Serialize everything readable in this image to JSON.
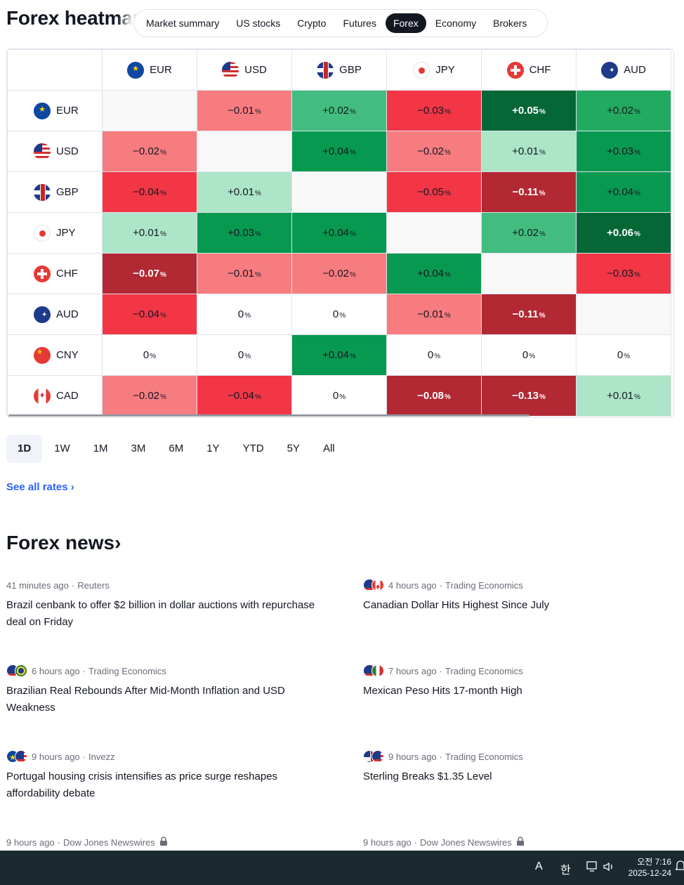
{
  "header": {
    "title": "Forex heatmap",
    "tabs": [
      "Market summary",
      "US stocks",
      "Crypto",
      "Futures",
      "Forex",
      "Economy",
      "Brokers"
    ],
    "active_tab": "Forex"
  },
  "heatmap": {
    "columns": [
      "EUR",
      "USD",
      "GBP",
      "JPY",
      "CHF",
      "AUD"
    ],
    "rows": [
      {
        "currency": "EUR",
        "cells": [
          "",
          "−0.01",
          "+0.02",
          "−0.03",
          "+0.05",
          "+0.02"
        ],
        "colors": [
          "#f8f8f8",
          "#f77c80",
          "#42bd7f",
          "#f23645",
          "#056636",
          "#22ab60"
        ]
      },
      {
        "currency": "USD",
        "cells": [
          "−0.02",
          "",
          "+0.04",
          "−0.02",
          "+0.01",
          "+0.03"
        ],
        "colors": [
          "#f77c80",
          "#f8f8f8",
          "#089950",
          "#f77c80",
          "#ace5c7",
          "#089950"
        ]
      },
      {
        "currency": "GBP",
        "cells": [
          "−0.04",
          "+0.01",
          "",
          "−0.05",
          "−0.11",
          "+0.04"
        ],
        "colors": [
          "#f23645",
          "#ace5c7",
          "#f8f8f8",
          "#f23645",
          "#b22833",
          "#089950"
        ]
      },
      {
        "currency": "JPY",
        "cells": [
          "+0.01",
          "+0.03",
          "+0.04",
          "",
          "+0.02",
          "+0.06"
        ],
        "colors": [
          "#ace5c7",
          "#089950",
          "#089950",
          "#f8f8f8",
          "#42bd7f",
          "#056636"
        ]
      },
      {
        "currency": "CHF",
        "cells": [
          "−0.07",
          "−0.01",
          "−0.02",
          "+0.04",
          "",
          "−0.03"
        ],
        "colors": [
          "#b22833",
          "#f77c80",
          "#f77c80",
          "#089950",
          "#f8f8f8",
          "#f23645"
        ]
      },
      {
        "currency": "AUD",
        "cells": [
          "−0.04",
          "0",
          "0",
          "−0.01",
          "−0.11",
          ""
        ],
        "colors": [
          "#f23645",
          "#ffffff",
          "#ffffff",
          "#f77c80",
          "#b22833",
          "#f8f8f8"
        ]
      },
      {
        "currency": "CNY",
        "cells": [
          "0",
          "0",
          "+0.04",
          "0",
          "0",
          "0"
        ],
        "colors": [
          "#ffffff",
          "#ffffff",
          "#089950",
          "#ffffff",
          "#ffffff",
          "#ffffff"
        ]
      },
      {
        "currency": "CAD",
        "cells": [
          "−0.02",
          "−0.04",
          "0",
          "−0.08",
          "−0.13",
          "+0.01"
        ],
        "colors": [
          "#f77c80",
          "#f23645",
          "#ffffff",
          "#b22833",
          "#b22833",
          "#ace5c7"
        ]
      }
    ],
    "pct_symbol": "%"
  },
  "periods": [
    "1D",
    "1W",
    "1M",
    "3M",
    "6M",
    "1Y",
    "YTD",
    "5Y",
    "All"
  ],
  "active_period": "1D",
  "see_all": "See all rates ›",
  "news": {
    "title": "Forex news",
    "title_arrow": "›",
    "items": [
      {
        "time": "41 minutes ago",
        "source": "Reuters",
        "headline": "Brazil cenbank to offer $2 billion in dollar auctions with repurchase deal on Friday",
        "flags": []
      },
      {
        "time": "4 hours ago",
        "source": "Trading Economics",
        "headline": "Canadian Dollar Hits Highest Since July",
        "flags": [
          "usd",
          "cad"
        ]
      },
      {
        "time": "6 hours ago",
        "source": "Trading Economics",
        "headline": "Brazilian Real Rebounds After Mid-Month Inflation and USD Weakness",
        "flags": [
          "usd",
          "brl"
        ]
      },
      {
        "time": "7 hours ago",
        "source": "Trading Economics",
        "headline": "Mexican Peso Hits 17-month High",
        "flags": [
          "usd",
          "mxn"
        ]
      },
      {
        "time": "9 hours ago",
        "source": "Invezz",
        "headline": "Portugal housing crisis intensifies as price surge reshapes affordability debate",
        "flags": [
          "eur",
          "usd"
        ]
      },
      {
        "time": "9 hours ago",
        "source": "Trading Economics",
        "headline": "Sterling Breaks $1.35 Level",
        "flags": [
          "gbp",
          "usd"
        ]
      },
      {
        "time": "9 hours ago",
        "source": "Dow Jones Newswires",
        "headline": "",
        "flags": [],
        "locked": true
      },
      {
        "time": "9 hours ago",
        "source": "Dow Jones Newswires",
        "headline": "",
        "flags": [],
        "locked": true
      }
    ]
  },
  "taskbar": {
    "ime_a": "A",
    "ime_han": "한",
    "clock_top": "오전 7:16",
    "clock_date": "2025-12-24"
  }
}
